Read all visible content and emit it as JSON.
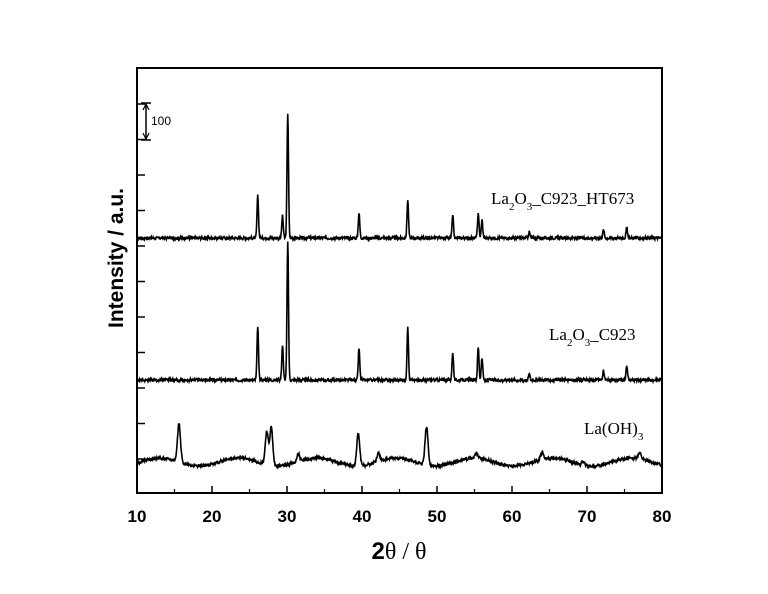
{
  "chart_data": {
    "type": "line",
    "xlabel_prefix": "2",
    "xlabel_main": "θ / θ",
    "ylabel": "Intensity / a.u.",
    "xlim": [
      10,
      80
    ],
    "xticks": [
      10,
      20,
      30,
      40,
      50,
      60,
      70,
      80
    ],
    "scale_bar_label": "100",
    "series": [
      {
        "name_parts": [
          [
            "La",
            "normal"
          ],
          [
            "2",
            "sub"
          ],
          [
            "O",
            "normal"
          ],
          [
            "3",
            "sub"
          ],
          [
            "_C923_HT673",
            "normal"
          ]
        ],
        "peaks": [
          [
            26.1,
            42
          ],
          [
            29.4,
            22
          ],
          [
            30.1,
            125
          ],
          [
            39.6,
            25
          ],
          [
            46.1,
            38
          ],
          [
            52.1,
            22
          ],
          [
            55.5,
            25
          ],
          [
            56.0,
            18
          ],
          [
            62.3,
            6
          ],
          [
            72.2,
            8
          ],
          [
            75.3,
            10
          ]
        ]
      },
      {
        "name_parts": [
          [
            "La",
            "normal"
          ],
          [
            "2",
            "sub"
          ],
          [
            "O",
            "normal"
          ],
          [
            "3",
            "sub"
          ],
          [
            "_C923",
            "normal"
          ]
        ],
        "peaks": [
          [
            26.1,
            53
          ],
          [
            29.4,
            35
          ],
          [
            30.1,
            138
          ],
          [
            39.6,
            32
          ],
          [
            46.1,
            52
          ],
          [
            52.1,
            28
          ],
          [
            55.5,
            33
          ],
          [
            56.0,
            22
          ],
          [
            62.3,
            6
          ],
          [
            72.2,
            9
          ],
          [
            75.3,
            14
          ]
        ]
      },
      {
        "name_parts": [
          [
            "La(OH)",
            "normal"
          ],
          [
            "3",
            "sub"
          ]
        ],
        "peaks": [
          [
            15.6,
            38
          ],
          [
            27.3,
            33
          ],
          [
            27.9,
            38
          ],
          [
            31.5,
            8
          ],
          [
            39.5,
            33
          ],
          [
            42.2,
            8
          ],
          [
            48.6,
            38
          ],
          [
            55.3,
            5
          ],
          [
            64.0,
            7
          ],
          [
            69.5,
            4
          ],
          [
            77.0,
            6
          ]
        ]
      }
    ]
  }
}
